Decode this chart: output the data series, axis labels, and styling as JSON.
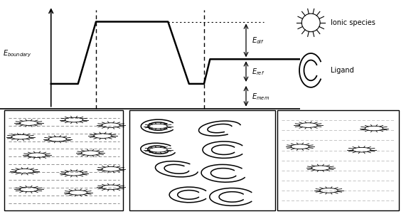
{
  "fig_width": 5.78,
  "fig_height": 3.01,
  "dpi": 100,
  "bg_color": "#ffffff",
  "legend_ionic_label": "Ionic species",
  "legend_ligand_label": "Ligand",
  "color_line": "#000000"
}
